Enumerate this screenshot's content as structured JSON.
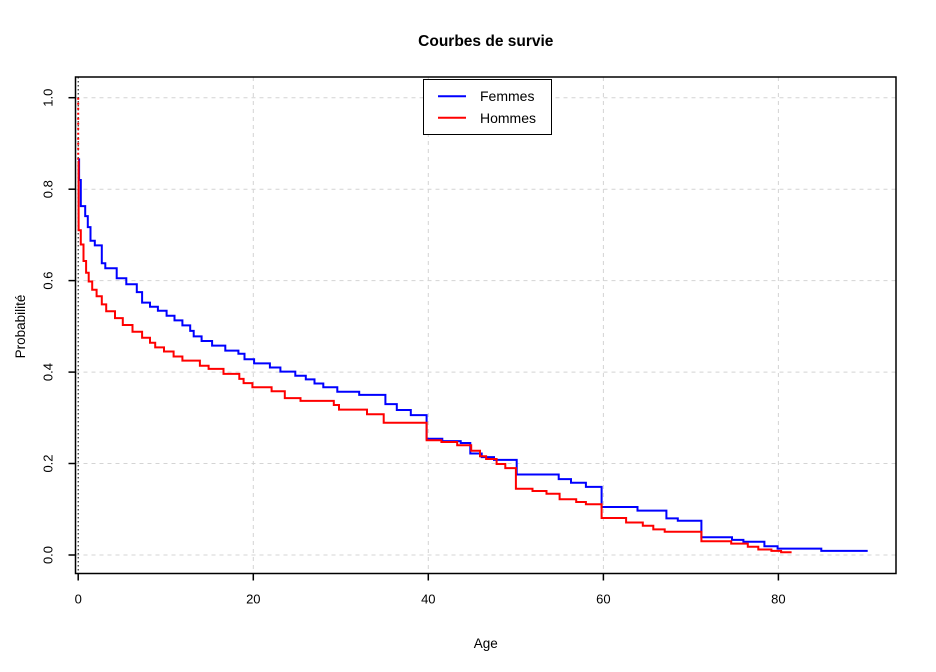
{
  "title": "Courbes de survie",
  "chart_data": {
    "type": "line",
    "subtype": "kaplan-meier-step",
    "title": "Courbes de survie",
    "xlabel": "Age",
    "ylabel": "Probabilité",
    "xlim": [
      0,
      90
    ],
    "ylim": [
      0,
      1
    ],
    "grid": true,
    "legend_position": "top-center",
    "x_ticks": [
      0,
      20,
      40,
      60,
      80
    ],
    "x_tick_labels": [
      "0",
      "20",
      "40",
      "60",
      "80"
    ],
    "y_ticks": [
      0,
      0.2,
      0.4,
      0.6,
      0.8,
      1.0
    ],
    "y_tick_labels": [
      "0.0",
      "0.2",
      "0.4",
      "0.6",
      "0.8",
      "1.0"
    ],
    "origin_rule_x": 0,
    "series": [
      {
        "name": "Femmes",
        "color": "#0000ff",
        "end_age": 90.2,
        "points": [
          [
            0,
            0.865
          ],
          [
            0.1,
            0.82
          ],
          [
            0.3,
            0.763
          ],
          [
            0.8,
            0.741
          ],
          [
            1.1,
            0.717
          ],
          [
            1.4,
            0.687
          ],
          [
            1.9,
            0.677
          ],
          [
            2.7,
            0.638
          ],
          [
            3.1,
            0.627
          ],
          [
            4.4,
            0.605
          ],
          [
            5.5,
            0.592
          ],
          [
            6.7,
            0.575
          ],
          [
            7.3,
            0.552
          ],
          [
            8.2,
            0.543
          ],
          [
            9.1,
            0.534
          ],
          [
            10.1,
            0.523
          ],
          [
            11.0,
            0.513
          ],
          [
            11.9,
            0.502
          ],
          [
            12.8,
            0.49
          ],
          [
            13.2,
            0.478
          ],
          [
            14.1,
            0.468
          ],
          [
            15.3,
            0.458
          ],
          [
            16.8,
            0.447
          ],
          [
            18.3,
            0.44
          ],
          [
            19.0,
            0.428
          ],
          [
            20.1,
            0.419
          ],
          [
            21.9,
            0.41
          ],
          [
            23.1,
            0.401
          ],
          [
            24.8,
            0.392
          ],
          [
            26.0,
            0.384
          ],
          [
            27.0,
            0.375
          ],
          [
            28.0,
            0.367
          ],
          [
            29.6,
            0.357
          ],
          [
            32.1,
            0.35
          ],
          [
            35.1,
            0.33
          ],
          [
            36.4,
            0.317
          ],
          [
            38.0,
            0.306
          ],
          [
            39.8,
            0.254
          ],
          [
            41.6,
            0.249
          ],
          [
            43.7,
            0.245
          ],
          [
            44.8,
            0.222
          ],
          [
            46.1,
            0.214
          ],
          [
            47.5,
            0.208
          ],
          [
            50.1,
            0.176
          ],
          [
            54.9,
            0.166
          ],
          [
            56.3,
            0.158
          ],
          [
            58.0,
            0.149
          ],
          [
            59.8,
            0.105
          ],
          [
            63.9,
            0.097
          ],
          [
            67.2,
            0.08
          ],
          [
            68.5,
            0.075
          ],
          [
            71.2,
            0.039
          ],
          [
            74.7,
            0.033
          ],
          [
            76.0,
            0.029
          ],
          [
            78.4,
            0.019
          ],
          [
            79.9,
            0.014
          ],
          [
            84.9,
            0.009
          ]
        ]
      },
      {
        "name": "Hommes",
        "color": "#ff0000",
        "end_age": 81.5,
        "initial_dotted_drop": {
          "from": 1.0,
          "to": 0.861
        },
        "points": [
          [
            0,
            0.861
          ],
          [
            0.05,
            0.71
          ],
          [
            0.3,
            0.679
          ],
          [
            0.6,
            0.643
          ],
          [
            0.9,
            0.617
          ],
          [
            1.2,
            0.598
          ],
          [
            1.6,
            0.58
          ],
          [
            2.1,
            0.566
          ],
          [
            2.7,
            0.548
          ],
          [
            3.2,
            0.533
          ],
          [
            4.2,
            0.518
          ],
          [
            5.1,
            0.503
          ],
          [
            6.2,
            0.488
          ],
          [
            7.3,
            0.475
          ],
          [
            8.2,
            0.464
          ],
          [
            8.8,
            0.454
          ],
          [
            9.8,
            0.445
          ],
          [
            10.9,
            0.434
          ],
          [
            11.9,
            0.425
          ],
          [
            13.9,
            0.414
          ],
          [
            14.9,
            0.407
          ],
          [
            16.6,
            0.396
          ],
          [
            18.4,
            0.385
          ],
          [
            18.9,
            0.376
          ],
          [
            19.9,
            0.367
          ],
          [
            22.1,
            0.358
          ],
          [
            23.6,
            0.343
          ],
          [
            25.4,
            0.337
          ],
          [
            29.2,
            0.328
          ],
          [
            29.8,
            0.318
          ],
          [
            33.0,
            0.308
          ],
          [
            34.9,
            0.289
          ],
          [
            39.8,
            0.251
          ],
          [
            41.5,
            0.247
          ],
          [
            43.3,
            0.24
          ],
          [
            44.9,
            0.228
          ],
          [
            45.9,
            0.216
          ],
          [
            46.6,
            0.21
          ],
          [
            47.8,
            0.199
          ],
          [
            48.8,
            0.19
          ],
          [
            50.0,
            0.145
          ],
          [
            51.9,
            0.14
          ],
          [
            53.5,
            0.134
          ],
          [
            55.0,
            0.122
          ],
          [
            56.9,
            0.116
          ],
          [
            58.0,
            0.111
          ],
          [
            59.8,
            0.081
          ],
          [
            62.6,
            0.071
          ],
          [
            64.5,
            0.064
          ],
          [
            65.7,
            0.056
          ],
          [
            67.0,
            0.051
          ],
          [
            71.2,
            0.03
          ],
          [
            74.6,
            0.025
          ],
          [
            76.5,
            0.018
          ],
          [
            77.7,
            0.012
          ],
          [
            79.2,
            0.009
          ],
          [
            80.3,
            0.006
          ]
        ]
      }
    ]
  }
}
